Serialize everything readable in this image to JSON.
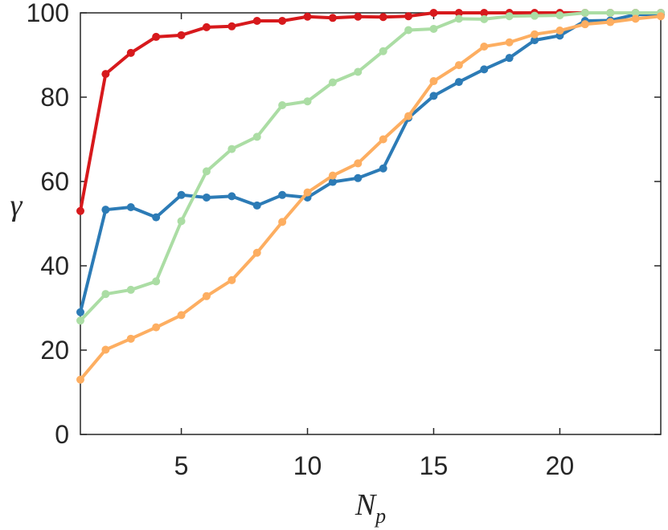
{
  "chart_data": {
    "type": "line",
    "title": "",
    "xlabel": "N",
    "xlabel_subscript": "p",
    "ylabel": "γ",
    "xlim": [
      1,
      24
    ],
    "ylim": [
      0,
      100
    ],
    "xticks": [
      5,
      10,
      15,
      20
    ],
    "yticks": [
      0,
      20,
      40,
      60,
      80,
      100
    ],
    "grid": false,
    "legend": "none",
    "x": [
      1,
      2,
      3,
      4,
      5,
      6,
      7,
      8,
      9,
      10,
      11,
      12,
      13,
      14,
      15,
      16,
      17,
      18,
      19,
      20,
      21,
      22,
      23,
      24
    ],
    "series": [
      {
        "color": "#d7191c",
        "values": [
          53,
          85.5,
          90.5,
          94.3,
          94.7,
          96.6,
          96.8,
          98.1,
          98.1,
          99.1,
          98.8,
          99.1,
          99.0,
          99.2,
          100,
          100,
          100,
          100,
          100,
          100,
          100,
          100,
          100,
          100
        ]
      },
      {
        "color": "#2c7bb6",
        "values": [
          29,
          53.3,
          53.9,
          51.5,
          56.8,
          56.2,
          56.5,
          54.3,
          56.8,
          56.2,
          59.9,
          60.8,
          63.1,
          75.1,
          80.3,
          83.6,
          86.6,
          89.3,
          93.5,
          94.6,
          98.1,
          98.2,
          99.6,
          99.6
        ]
      },
      {
        "color": "#abdda4",
        "values": [
          27,
          33.3,
          34.3,
          36.3,
          50.6,
          62.4,
          67.7,
          70.6,
          78.1,
          79.0,
          83.5,
          86.0,
          90.9,
          95.9,
          96.2,
          98.6,
          98.5,
          99.2,
          99.3,
          99.4,
          100,
          100,
          100,
          100
        ]
      },
      {
        "color": "#fdae61",
        "values": [
          13,
          20.1,
          22.7,
          25.4,
          28.3,
          32.8,
          36.6,
          43.1,
          50.4,
          57.4,
          61.4,
          64.3,
          70.0,
          75.5,
          83.8,
          87.6,
          92.0,
          93.0,
          94.9,
          95.8,
          97.3,
          97.8,
          98.6,
          99.2
        ]
      }
    ]
  }
}
